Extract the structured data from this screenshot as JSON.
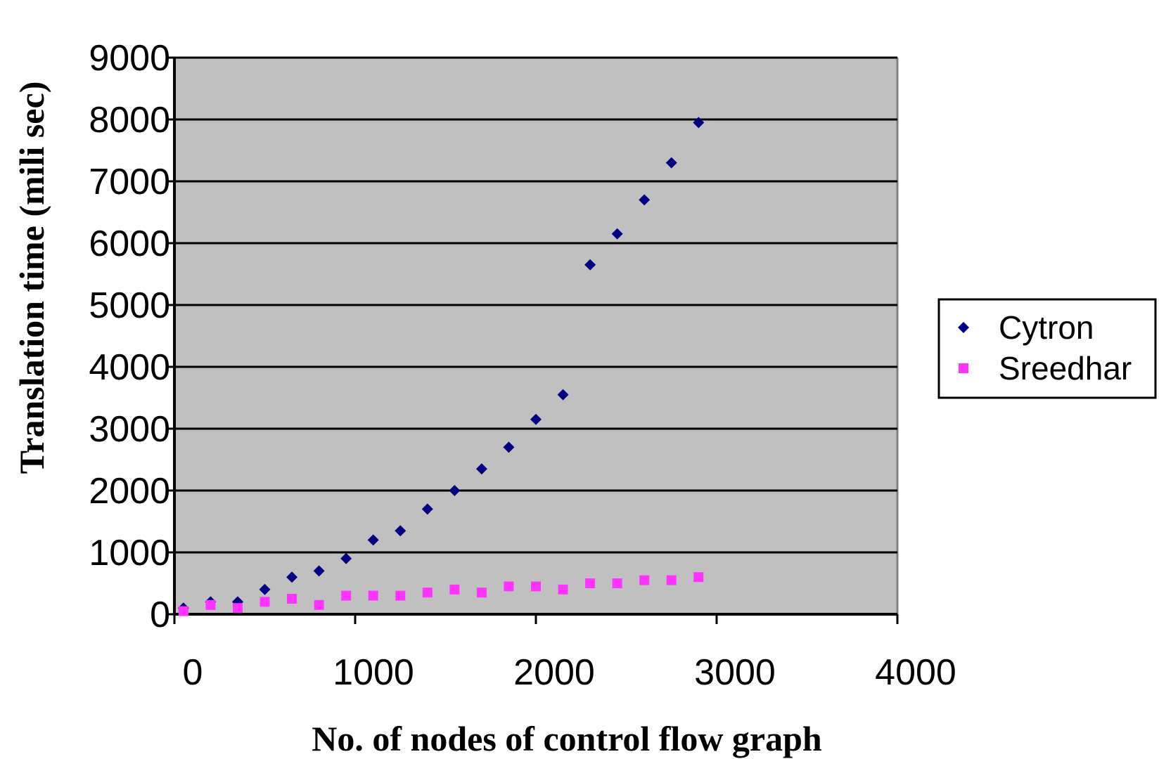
{
  "chart_data": {
    "type": "scatter",
    "title": "",
    "xlabel": "No. of nodes of control flow graph",
    "ylabel": "Translation time (mili sec)",
    "xlim": [
      0,
      4000
    ],
    "ylim": [
      0,
      9000
    ],
    "x_ticks": [
      "0",
      "1000",
      "2000",
      "3000",
      "4000"
    ],
    "y_ticks": [
      "0",
      "1000",
      "2000",
      "3000",
      "4000",
      "5000",
      "6000",
      "7000",
      "8000",
      "9000"
    ],
    "grid": "horizontal",
    "plot_background": "#c0c0c0",
    "legend_position": "right",
    "series": [
      {
        "name": "Cytron",
        "color": "#000080",
        "marker": "diamond",
        "points": [
          [
            50,
            100
          ],
          [
            200,
            200
          ],
          [
            350,
            200
          ],
          [
            500,
            400
          ],
          [
            650,
            600
          ],
          [
            800,
            700
          ],
          [
            950,
            900
          ],
          [
            1100,
            1200
          ],
          [
            1250,
            1350
          ],
          [
            1400,
            1700
          ],
          [
            1550,
            2000
          ],
          [
            1700,
            2350
          ],
          [
            1850,
            2700
          ],
          [
            2000,
            3150
          ],
          [
            2150,
            3550
          ],
          [
            2300,
            5650
          ],
          [
            2450,
            6150
          ],
          [
            2600,
            6700
          ],
          [
            2750,
            7300
          ],
          [
            2900,
            7950
          ]
        ]
      },
      {
        "name": "Sreedhar",
        "color": "#ff33ff",
        "marker": "square",
        "points": [
          [
            50,
            50
          ],
          [
            200,
            150
          ],
          [
            350,
            100
          ],
          [
            500,
            200
          ],
          [
            650,
            250
          ],
          [
            800,
            150
          ],
          [
            950,
            300
          ],
          [
            1100,
            300
          ],
          [
            1250,
            300
          ],
          [
            1400,
            350
          ],
          [
            1550,
            400
          ],
          [
            1700,
            350
          ],
          [
            1850,
            450
          ],
          [
            2000,
            450
          ],
          [
            2150,
            400
          ],
          [
            2300,
            500
          ],
          [
            2450,
            500
          ],
          [
            2600,
            550
          ],
          [
            2750,
            550
          ],
          [
            2900,
            600
          ]
        ]
      }
    ]
  }
}
